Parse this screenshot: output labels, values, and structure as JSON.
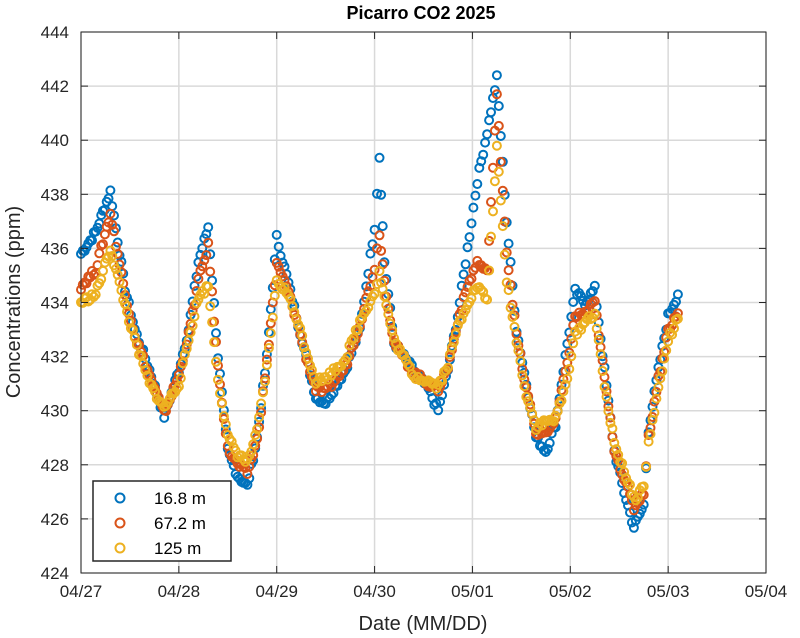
{
  "chart_data": {
    "type": "scatter",
    "title": "Picarro CO2 2025",
    "xlabel": "Date (MM/DD)",
    "ylabel": "Concentrations (ppm)",
    "x_tick_labels": [
      "04/27",
      "04/28",
      "04/29",
      "04/30",
      "05/01",
      "05/02",
      "05/03",
      "05/04"
    ],
    "xlim_days": [
      0,
      7
    ],
    "ylim": [
      424,
      444
    ],
    "y_ticks": [
      424,
      426,
      428,
      430,
      432,
      434,
      436,
      438,
      440,
      442,
      444
    ],
    "grid": true,
    "legend_position": "bottom-left",
    "marker": "open-circle",
    "series": [
      {
        "name": "16.8 m",
        "color": "#0072BD",
        "keypoints": [
          [
            0.0,
            435.8
          ],
          [
            0.15,
            436.6
          ],
          [
            0.3,
            438.1
          ],
          [
            0.45,
            434.5
          ],
          [
            0.55,
            433.0
          ],
          [
            0.7,
            431.5
          ],
          [
            0.85,
            429.8
          ],
          [
            1.0,
            431.5
          ],
          [
            1.1,
            433.0
          ],
          [
            1.2,
            435.5
          ],
          [
            1.3,
            436.8
          ],
          [
            1.4,
            432.0
          ],
          [
            1.5,
            428.5
          ],
          [
            1.6,
            427.6
          ],
          [
            1.7,
            427.2
          ],
          [
            1.8,
            429.0
          ],
          [
            1.9,
            432.0
          ],
          [
            2.0,
            436.4
          ],
          [
            2.1,
            435.0
          ],
          [
            2.2,
            433.5
          ],
          [
            2.3,
            432.0
          ],
          [
            2.4,
            430.5
          ],
          [
            2.5,
            430.3
          ],
          [
            2.7,
            431.5
          ],
          [
            2.85,
            433.0
          ],
          [
            3.0,
            436.8
          ],
          [
            3.05,
            439.4
          ],
          [
            3.1,
            435.5
          ],
          [
            3.2,
            432.5
          ],
          [
            3.4,
            431.5
          ],
          [
            3.55,
            430.8
          ],
          [
            3.65,
            430.0
          ],
          [
            3.75,
            431.5
          ],
          [
            3.85,
            433.5
          ],
          [
            3.95,
            436.0
          ],
          [
            4.05,
            438.5
          ],
          [
            4.15,
            440.3
          ],
          [
            4.25,
            442.3
          ],
          [
            4.35,
            437.0
          ],
          [
            4.45,
            433.0
          ],
          [
            4.55,
            431.0
          ],
          [
            4.65,
            429.0
          ],
          [
            4.75,
            428.5
          ],
          [
            4.85,
            429.5
          ],
          [
            4.95,
            432.0
          ],
          [
            5.05,
            434.4
          ],
          [
            5.15,
            434.0
          ],
          [
            5.25,
            434.5
          ],
          [
            5.35,
            431.5
          ],
          [
            5.45,
            428.5
          ],
          [
            5.55,
            427.0
          ],
          [
            5.65,
            425.7
          ],
          [
            5.75,
            426.5
          ],
          [
            5.8,
            429.3
          ],
          [
            5.9,
            431.5
          ],
          [
            6.0,
            433.5
          ],
          [
            6.1,
            434.3
          ]
        ]
      },
      {
        "name": "67.2 m",
        "color": "#D95319",
        "keypoints": [
          [
            0.0,
            434.6
          ],
          [
            0.15,
            435.2
          ],
          [
            0.3,
            437.3
          ],
          [
            0.45,
            434.3
          ],
          [
            0.55,
            432.8
          ],
          [
            0.7,
            431.3
          ],
          [
            0.85,
            429.9
          ],
          [
            1.0,
            431.3
          ],
          [
            1.1,
            432.8
          ],
          [
            1.2,
            434.8
          ],
          [
            1.3,
            436.1
          ],
          [
            1.4,
            431.6
          ],
          [
            1.5,
            428.6
          ],
          [
            1.6,
            428.0
          ],
          [
            1.7,
            427.7
          ],
          [
            1.8,
            428.9
          ],
          [
            1.9,
            431.8
          ],
          [
            2.0,
            435.4
          ],
          [
            2.1,
            434.6
          ],
          [
            2.2,
            433.4
          ],
          [
            2.3,
            432.0
          ],
          [
            2.4,
            430.8
          ],
          [
            2.5,
            430.7
          ],
          [
            2.7,
            431.6
          ],
          [
            2.85,
            433.2
          ],
          [
            3.0,
            435.3
          ],
          [
            3.05,
            436.6
          ],
          [
            3.1,
            434.8
          ],
          [
            3.2,
            432.5
          ],
          [
            3.4,
            431.4
          ],
          [
            3.55,
            431.0
          ],
          [
            3.65,
            430.8
          ],
          [
            3.75,
            431.6
          ],
          [
            3.85,
            433.3
          ],
          [
            3.95,
            434.6
          ],
          [
            4.05,
            435.5
          ],
          [
            4.15,
            435.1
          ],
          [
            4.25,
            441.6
          ],
          [
            4.35,
            435.9
          ],
          [
            4.45,
            432.8
          ],
          [
            4.55,
            430.8
          ],
          [
            4.65,
            429.2
          ],
          [
            4.75,
            429.2
          ],
          [
            4.85,
            429.6
          ],
          [
            4.95,
            431.4
          ],
          [
            5.05,
            433.5
          ],
          [
            5.15,
            433.6
          ],
          [
            5.25,
            434.0
          ],
          [
            5.35,
            431.2
          ],
          [
            5.45,
            428.6
          ],
          [
            5.55,
            427.5
          ],
          [
            5.65,
            426.4
          ],
          [
            5.75,
            427.0
          ],
          [
            5.8,
            429.0
          ],
          [
            5.9,
            431.2
          ],
          [
            6.0,
            433.0
          ],
          [
            6.1,
            433.6
          ]
        ]
      },
      {
        "name": "125 m",
        "color": "#EDB120",
        "keypoints": [
          [
            0.0,
            434.0
          ],
          [
            0.15,
            434.3
          ],
          [
            0.3,
            436.0
          ],
          [
            0.45,
            433.9
          ],
          [
            0.55,
            432.6
          ],
          [
            0.7,
            431.0
          ],
          [
            0.85,
            430.1
          ],
          [
            1.0,
            431.0
          ],
          [
            1.1,
            432.6
          ],
          [
            1.2,
            434.2
          ],
          [
            1.3,
            434.6
          ],
          [
            1.4,
            431.2
          ],
          [
            1.5,
            429.0
          ],
          [
            1.6,
            428.4
          ],
          [
            1.7,
            428.1
          ],
          [
            1.8,
            429.2
          ],
          [
            1.9,
            431.6
          ],
          [
            2.0,
            434.8
          ],
          [
            2.1,
            434.4
          ],
          [
            2.2,
            433.5
          ],
          [
            2.3,
            432.2
          ],
          [
            2.4,
            431.1
          ],
          [
            2.5,
            431.2
          ],
          [
            2.7,
            431.9
          ],
          [
            2.85,
            433.3
          ],
          [
            3.0,
            434.4
          ],
          [
            3.05,
            435.1
          ],
          [
            3.1,
            434.2
          ],
          [
            3.2,
            432.6
          ],
          [
            3.4,
            431.3
          ],
          [
            3.55,
            431.1
          ],
          [
            3.65,
            430.9
          ],
          [
            3.75,
            431.7
          ],
          [
            3.85,
            433.1
          ],
          [
            3.95,
            434.0
          ],
          [
            4.05,
            434.6
          ],
          [
            4.15,
            434.1
          ],
          [
            4.25,
            439.7
          ],
          [
            4.35,
            434.8
          ],
          [
            4.45,
            432.6
          ],
          [
            4.55,
            430.6
          ],
          [
            4.65,
            429.4
          ],
          [
            4.75,
            429.6
          ],
          [
            4.85,
            429.7
          ],
          [
            4.95,
            430.9
          ],
          [
            5.05,
            432.8
          ],
          [
            5.15,
            433.3
          ],
          [
            5.25,
            433.6
          ],
          [
            5.35,
            430.9
          ],
          [
            5.45,
            428.8
          ],
          [
            5.55,
            427.8
          ],
          [
            5.65,
            426.7
          ],
          [
            5.75,
            427.2
          ],
          [
            5.8,
            428.8
          ],
          [
            5.9,
            430.8
          ],
          [
            6.0,
            432.6
          ],
          [
            6.1,
            433.4
          ]
        ]
      }
    ]
  }
}
